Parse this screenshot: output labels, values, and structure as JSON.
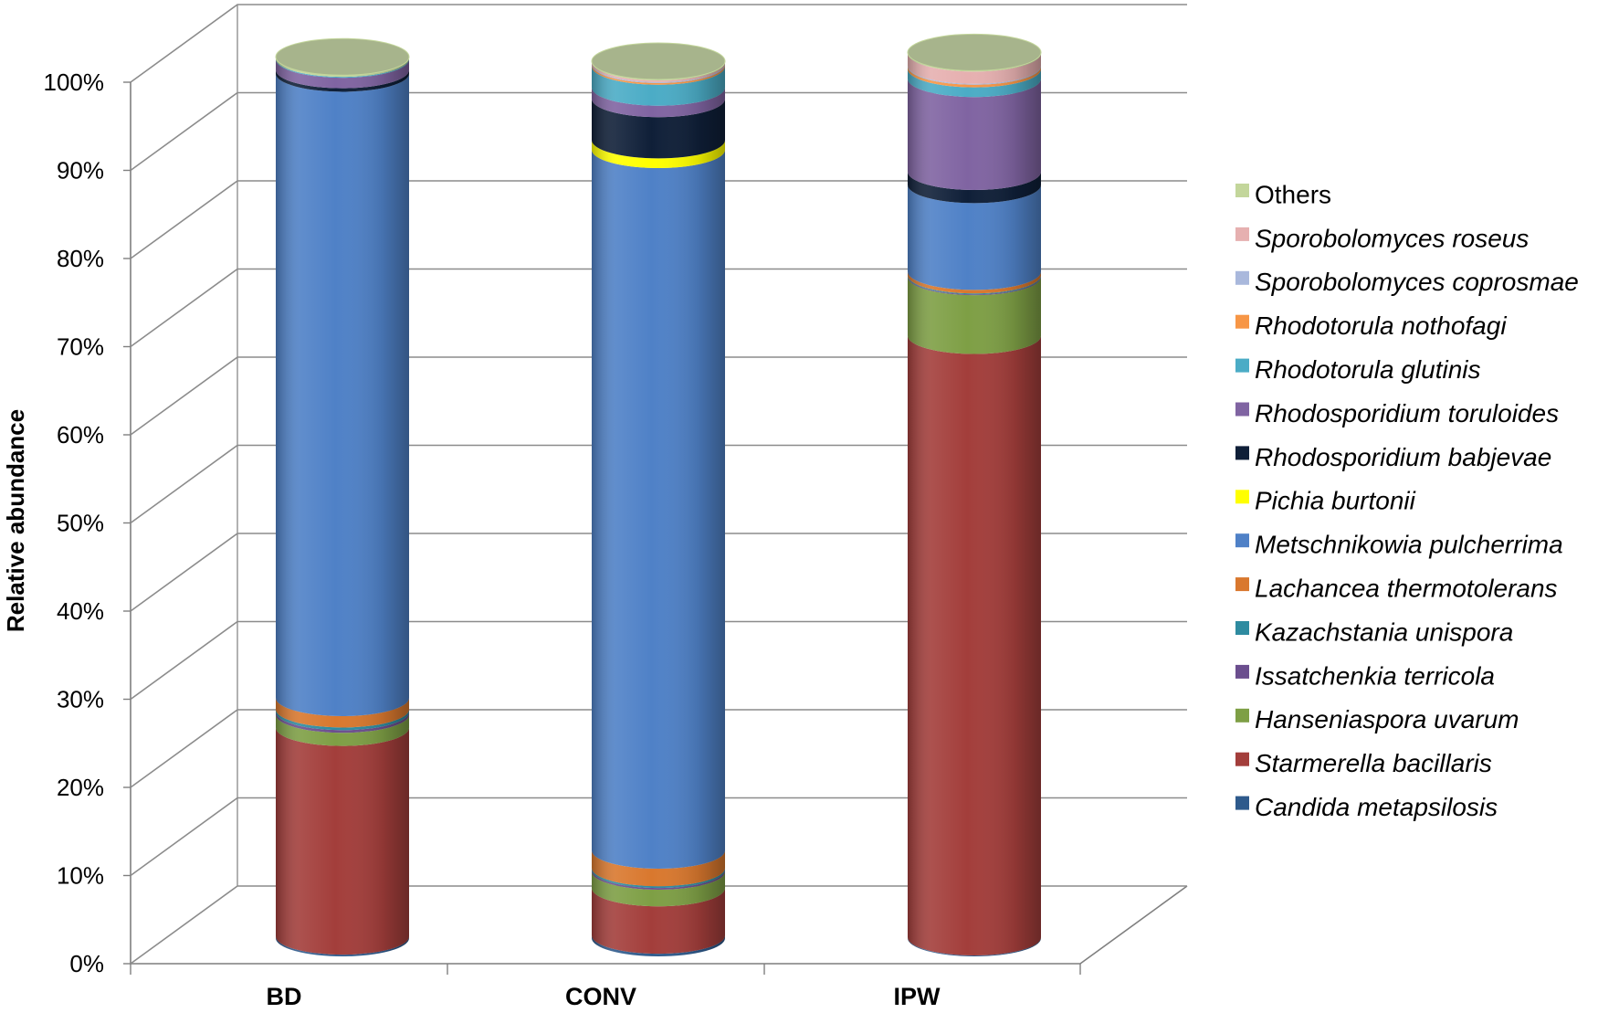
{
  "chart_data": {
    "type": "bar",
    "subtype": "stacked-100-percent-cylinder-3d",
    "ylabel": "Relative abundance",
    "xlabel": "",
    "ylim": [
      0,
      100
    ],
    "ytick_labels": [
      "0%",
      "10%",
      "20%",
      "30%",
      "40%",
      "50%",
      "60%",
      "70%",
      "80%",
      "90%",
      "100%"
    ],
    "grid": true,
    "legend_position": "right",
    "categories": [
      "BD",
      "CONV",
      "IPW"
    ],
    "series": [
      {
        "name": "Candida metapsilosis",
        "color": "#2E5A8C",
        "italic": true,
        "values": [
          0.2,
          0.3,
          0.1
        ]
      },
      {
        "name": "Starmerella bacillaris",
        "color": "#A33E3B",
        "italic": true,
        "values": [
          23.8,
          5.4,
          68.6
        ]
      },
      {
        "name": "Hanseniaspora uvarum",
        "color": "#7E9F45",
        "italic": true,
        "values": [
          1.5,
          1.9,
          6.7
        ]
      },
      {
        "name": "Issatchenkia terricola",
        "color": "#6B4E8E",
        "italic": true,
        "values": [
          0.3,
          0.2,
          0.1
        ]
      },
      {
        "name": "Kazachstania unispora",
        "color": "#2E8BA0",
        "italic": true,
        "values": [
          0.3,
          0.2,
          0.1
        ]
      },
      {
        "name": "Lachancea thermotolerans",
        "color": "#D9782E",
        "italic": true,
        "values": [
          1.3,
          2.0,
          0.4
        ]
      },
      {
        "name": "Metschnikowia pulcherrima",
        "color": "#4F81C7",
        "italic": true,
        "values": [
          71.2,
          79.9,
          9.9
        ]
      },
      {
        "name": "Pichia burtonii",
        "color": "#FFFF00",
        "italic": true,
        "values": [
          0.0,
          1.1,
          0.0
        ]
      },
      {
        "name": "Rhodosporidium babjevae",
        "color": "#0F1F38",
        "italic": true,
        "values": [
          0.4,
          4.7,
          1.5
        ]
      },
      {
        "name": "Rhodosporidium toruloides",
        "color": "#8064A2",
        "italic": true,
        "values": [
          1.2,
          1.3,
          10.6
        ]
      },
      {
        "name": "Rhodotorula glutinis",
        "color": "#4BACC6",
        "italic": true,
        "values": [
          0.1,
          2.4,
          1.1
        ]
      },
      {
        "name": "Rhodotorula nothofagi",
        "color": "#F79646",
        "italic": true,
        "values": [
          0.0,
          0.2,
          0.3
        ]
      },
      {
        "name": "Sporobolomyces coprosmae",
        "color": "#A9B8DC",
        "italic": true,
        "values": [
          0.0,
          0.1,
          0.1
        ]
      },
      {
        "name": "Sporobolomyces roseus",
        "color": "#E6B0B0",
        "italic": true,
        "values": [
          0.0,
          0.2,
          1.4
        ]
      },
      {
        "name": "Others",
        "color": "#C3D69B",
        "italic": false,
        "values": [
          0.2,
          0.1,
          0.1
        ]
      }
    ]
  }
}
